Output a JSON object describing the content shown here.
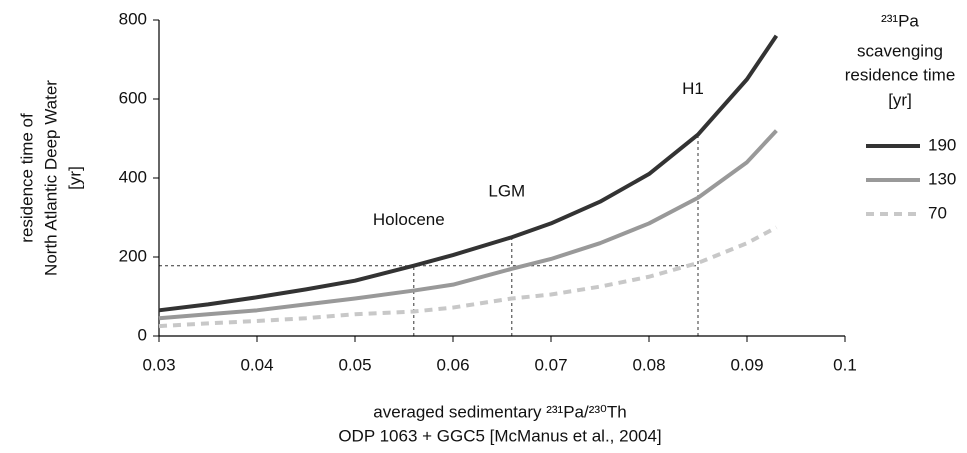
{
  "chart_data": {
    "type": "line",
    "y_label": [
      "residence time of",
      "North Atlantic Deep Water",
      "[yr]"
    ],
    "x_label": [
      "averaged sedimentary ²³¹Pa/²³⁰Th",
      "ODP 1063 + GGC5 [McManus et al., 2004]"
    ],
    "legend_title": [
      "²³¹Pa",
      "scavenging",
      "residence time",
      "[yr]"
    ],
    "x": [
      0.03,
      0.035,
      0.04,
      0.045,
      0.05,
      0.056,
      0.06,
      0.066,
      0.07,
      0.075,
      0.08,
      0.085,
      0.09,
      0.093
    ],
    "series": [
      {
        "name": "190",
        "color": "#333333",
        "dashed": false,
        "values": [
          65,
          80,
          98,
          118,
          140,
          178,
          205,
          250,
          285,
          340,
          410,
          510,
          650,
          760
        ]
      },
      {
        "name": "130",
        "color": "#999999",
        "dashed": false,
        "values": [
          45,
          55,
          65,
          80,
          95,
          115,
          130,
          170,
          195,
          235,
          285,
          350,
          440,
          520
        ]
      },
      {
        "name": "70",
        "color": "#c8c8c8",
        "dashed": true,
        "values": [
          25,
          32,
          38,
          45,
          55,
          62,
          72,
          95,
          105,
          125,
          150,
          185,
          235,
          275
        ]
      }
    ],
    "markers": [
      {
        "label": "Holocene",
        "x": 0.056,
        "y": 178
      },
      {
        "label": "LGM",
        "x": 0.066,
        "y": 250
      },
      {
        "label": "H1",
        "x": 0.085,
        "y": 510
      }
    ],
    "xlim": [
      0.03,
      0.1
    ],
    "xticks": [
      0.03,
      0.04,
      0.05,
      0.06,
      0.07,
      0.08,
      0.09,
      0.1
    ],
    "ylim": [
      0,
      800
    ],
    "yticks": [
      0,
      200,
      400,
      600,
      800
    ]
  }
}
